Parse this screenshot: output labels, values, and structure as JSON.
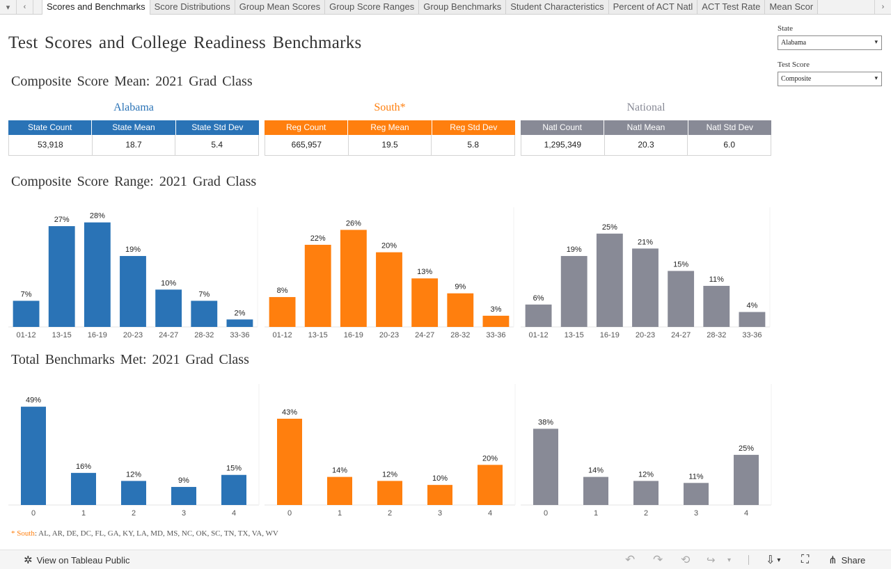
{
  "tabs": [
    {
      "label": "Scores and Benchmarks",
      "active": true
    },
    {
      "label": "Score Distributions"
    },
    {
      "label": "Group Mean Scores"
    },
    {
      "label": "Group Score Ranges"
    },
    {
      "label": "Group Benchmarks"
    },
    {
      "label": "Student Characteristics"
    },
    {
      "label": "Percent of ACT Natl"
    },
    {
      "label": "ACT Test Rate"
    },
    {
      "label": "Mean Scor"
    }
  ],
  "nav": {
    "menu": "▾",
    "prev": "‹",
    "next": "›"
  },
  "title": "Test Scores and College Readiness Benchmarks",
  "sections": {
    "mean": "Composite Score Mean: 2021 Grad Class",
    "range": "Composite Score Range: 2021 Grad Class",
    "benchmarks": "Total Benchmarks Met: 2021 Grad Class"
  },
  "filters": {
    "state": {
      "label": "State",
      "value": "Alabama"
    },
    "test": {
      "label": "Test Score",
      "value": "Composite"
    }
  },
  "colors": {
    "state": "#2a73b6",
    "region": "#ff7f0e",
    "national": "#888a96"
  },
  "groups": [
    {
      "title": "Alabama",
      "headers": [
        "State Count",
        "State Mean",
        "State Std Dev"
      ],
      "values": [
        "53,918",
        "18.7",
        "5.4"
      ]
    },
    {
      "title": "South*",
      "headers": [
        "Reg Count",
        "Reg Mean",
        "Reg Std Dev"
      ],
      "values": [
        "665,957",
        "19.5",
        "5.8"
      ]
    },
    {
      "title": "National",
      "headers": [
        "Natl Count",
        "Natl Mean",
        "Natl Std Dev"
      ],
      "values": [
        "1,295,349",
        "20.3",
        "6.0"
      ]
    }
  ],
  "chart_data": [
    {
      "type": "bar",
      "title": "Composite Score Range: 2021 Grad Class",
      "categories": [
        "01-12",
        "13-15",
        "16-19",
        "20-23",
        "24-27",
        "28-32",
        "33-36"
      ],
      "ylim": [
        0,
        30
      ],
      "unit": "%",
      "series": [
        {
          "name": "Alabama",
          "values": [
            7,
            27,
            28,
            19,
            10,
            7,
            2
          ]
        },
        {
          "name": "South*",
          "values": [
            8,
            22,
            26,
            20,
            13,
            9,
            3
          ]
        },
        {
          "name": "National",
          "values": [
            6,
            19,
            25,
            21,
            15,
            11,
            4
          ]
        }
      ]
    },
    {
      "type": "bar",
      "title": "Total Benchmarks Met: 2021 Grad Class",
      "categories": [
        "0",
        "1",
        "2",
        "3",
        "4"
      ],
      "ylim": [
        0,
        52
      ],
      "unit": "%",
      "series": [
        {
          "name": "Alabama",
          "values": [
            49,
            16,
            12,
            9,
            15
          ]
        },
        {
          "name": "South*",
          "values": [
            43,
            14,
            12,
            10,
            20
          ]
        },
        {
          "name": "National",
          "values": [
            38,
            14,
            12,
            11,
            25
          ]
        }
      ]
    }
  ],
  "footnote": {
    "marker": "*",
    "label": "South",
    "states": ": AL, AR, DE, DC, FL, GA, KY, LA, MD, MS, NC, OK, SC, TN, TX, VA, WV"
  },
  "toolbar": {
    "view_label": "View on Tableau Public",
    "share_label": "Share",
    "undo": "↶",
    "redo": "↷",
    "revert": "⟲",
    "refresh": "↪",
    "download": "⇩",
    "fullscreen": "⛶",
    "share_icon": "⋔",
    "caret": "▾",
    "settings": "✲"
  }
}
